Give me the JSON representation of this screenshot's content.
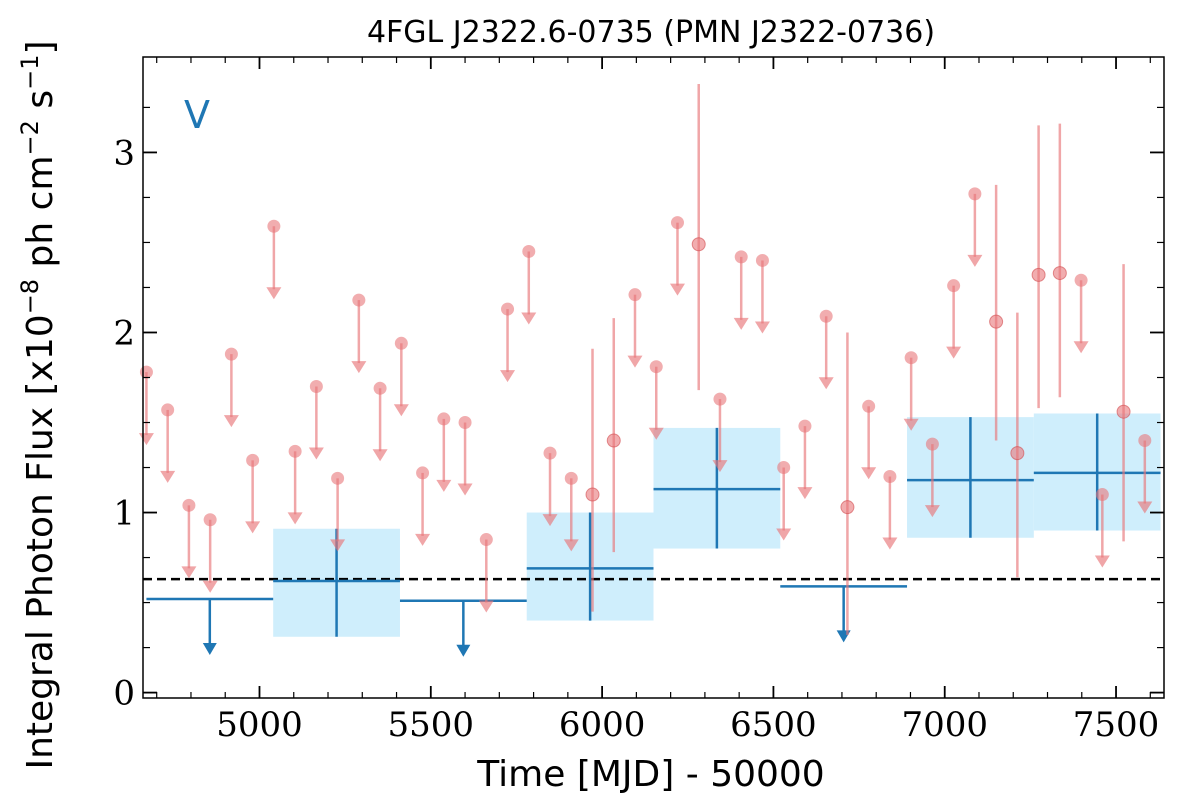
{
  "chart_data": {
    "type": "scatter",
    "title": "4FGL J2322.6-0735 (PMN J2322-0736)",
    "xlabel": "Time [MJD] - 50000",
    "ylabel": "Integral Photon Flux [x10⁻⁸ ph cm⁻² s⁻¹]",
    "band_label": "V",
    "xlim": [
      4660,
      7640
    ],
    "ylim": [
      -0.03,
      3.53
    ],
    "xticks": [
      5000,
      5500,
      6000,
      6500,
      7000,
      7500
    ],
    "yticks": [
      0,
      1,
      2,
      3
    ],
    "xtick_labels": [
      "5000",
      "5500",
      "6000",
      "6500",
      "7000",
      "7500"
    ],
    "ytick_labels": [
      "0",
      "1",
      "2",
      "3"
    ],
    "average_flux": 0.63,
    "colors": {
      "bins": "#1f77b4",
      "bin_box": "#cfeefc",
      "points": "#e8777a",
      "average_line": "#000000"
    },
    "series": [
      {
        "points": [
          {
            "x": 4670,
            "y": 1.78,
            "upper_limit": true
          },
          {
            "x": 4732,
            "y": 1.57,
            "upper_limit": true
          },
          {
            "x": 4794,
            "y": 1.04,
            "upper_limit": true
          },
          {
            "x": 4856,
            "y": 0.96,
            "upper_limit": true
          },
          {
            "x": 4918,
            "y": 1.88,
            "upper_limit": true
          },
          {
            "x": 4980,
            "y": 1.29,
            "upper_limit": true
          },
          {
            "x": 5042,
            "y": 2.59,
            "upper_limit": true
          },
          {
            "x": 5104,
            "y": 1.34,
            "upper_limit": true
          },
          {
            "x": 5166,
            "y": 1.7,
            "upper_limit": true
          },
          {
            "x": 5228,
            "y": 1.19,
            "upper_limit": true
          },
          {
            "x": 5290,
            "y": 2.18,
            "upper_limit": true
          },
          {
            "x": 5352,
            "y": 1.69,
            "upper_limit": true
          },
          {
            "x": 5414,
            "y": 1.94,
            "upper_limit": true
          },
          {
            "x": 5476,
            "y": 1.22,
            "upper_limit": true
          },
          {
            "x": 5538,
            "y": 1.52,
            "upper_limit": true
          },
          {
            "x": 5600,
            "y": 1.5,
            "upper_limit": true
          },
          {
            "x": 5662,
            "y": 0.85,
            "upper_limit": true
          },
          {
            "x": 5724,
            "y": 2.13,
            "upper_limit": true
          },
          {
            "x": 5786,
            "y": 2.45,
            "upper_limit": true
          },
          {
            "x": 5848,
            "y": 1.33,
            "upper_limit": true
          },
          {
            "x": 5910,
            "y": 1.19,
            "upper_limit": true
          },
          {
            "x": 5972,
            "y": 1.1,
            "yerr_low": 0.65,
            "yerr_high": 0.81,
            "upper_limit": false
          },
          {
            "x": 6034,
            "y": 1.4,
            "yerr_low": 0.62,
            "yerr_high": 0.68,
            "upper_limit": false
          },
          {
            "x": 6096,
            "y": 2.21,
            "upper_limit": true
          },
          {
            "x": 6158,
            "y": 1.81,
            "upper_limit": true
          },
          {
            "x": 6220,
            "y": 2.61,
            "upper_limit": true
          },
          {
            "x": 6282,
            "y": 2.49,
            "yerr_low": 0.81,
            "yerr_high": 0.89,
            "upper_limit": false
          },
          {
            "x": 6344,
            "y": 1.63,
            "upper_limit": true
          },
          {
            "x": 6406,
            "y": 2.42,
            "upper_limit": true
          },
          {
            "x": 6468,
            "y": 2.4,
            "upper_limit": true
          },
          {
            "x": 6530,
            "y": 1.25,
            "upper_limit": true
          },
          {
            "x": 6592,
            "y": 1.48,
            "upper_limit": true
          },
          {
            "x": 6654,
            "y": 2.09,
            "upper_limit": true
          },
          {
            "x": 6716,
            "y": 1.03,
            "yerr_low": 0.71,
            "yerr_high": 0.97,
            "upper_limit": false
          },
          {
            "x": 6778,
            "y": 1.59,
            "upper_limit": true
          },
          {
            "x": 6840,
            "y": 1.2,
            "upper_limit": true
          },
          {
            "x": 6902,
            "y": 1.86,
            "upper_limit": true
          },
          {
            "x": 6964,
            "y": 1.38,
            "upper_limit": true
          },
          {
            "x": 7026,
            "y": 2.26,
            "upper_limit": true
          },
          {
            "x": 7088,
            "y": 2.77,
            "upper_limit": true
          },
          {
            "x": 7150,
            "y": 2.06,
            "yerr_low": 0.66,
            "yerr_high": 0.76,
            "upper_limit": false
          },
          {
            "x": 7212,
            "y": 1.33,
            "yerr_low": 0.69,
            "yerr_high": 0.78,
            "upper_limit": false
          },
          {
            "x": 7274,
            "y": 2.32,
            "yerr_low": 0.74,
            "yerr_high": 0.83,
            "upper_limit": false
          },
          {
            "x": 7336,
            "y": 2.33,
            "yerr_low": 0.69,
            "yerr_high": 0.83,
            "upper_limit": false
          },
          {
            "x": 7398,
            "y": 2.29,
            "upper_limit": true
          },
          {
            "x": 7460,
            "y": 1.1,
            "upper_limit": true
          },
          {
            "x": 7522,
            "y": 1.56,
            "yerr_low": 0.72,
            "yerr_high": 0.82,
            "upper_limit": false
          },
          {
            "x": 7584,
            "y": 1.4,
            "upper_limit": true
          }
        ]
      },
      {
        "bins": [
          {
            "x0": 4670,
            "x1": 5040,
            "y": 0.52,
            "upper_limit": true
          },
          {
            "x0": 5040,
            "x1": 5410,
            "y": 0.62,
            "y_low": 0.31,
            "y_high": 0.91,
            "upper_limit": false
          },
          {
            "x0": 5410,
            "x1": 5780,
            "y": 0.51,
            "upper_limit": true
          },
          {
            "x0": 5780,
            "x1": 6150,
            "y": 0.69,
            "y_low": 0.4,
            "y_high": 1.0,
            "upper_limit": false
          },
          {
            "x0": 6150,
            "x1": 6520,
            "y": 1.13,
            "y_low": 0.8,
            "y_high": 1.47,
            "upper_limit": false
          },
          {
            "x0": 6520,
            "x1": 6890,
            "y": 0.59,
            "upper_limit": true
          },
          {
            "x0": 6890,
            "x1": 7260,
            "y": 1.18,
            "y_low": 0.86,
            "y_high": 1.53,
            "upper_limit": false
          },
          {
            "x0": 7260,
            "x1": 7630,
            "y": 1.22,
            "y_low": 0.9,
            "y_high": 1.55,
            "upper_limit": false
          }
        ]
      }
    ]
  }
}
